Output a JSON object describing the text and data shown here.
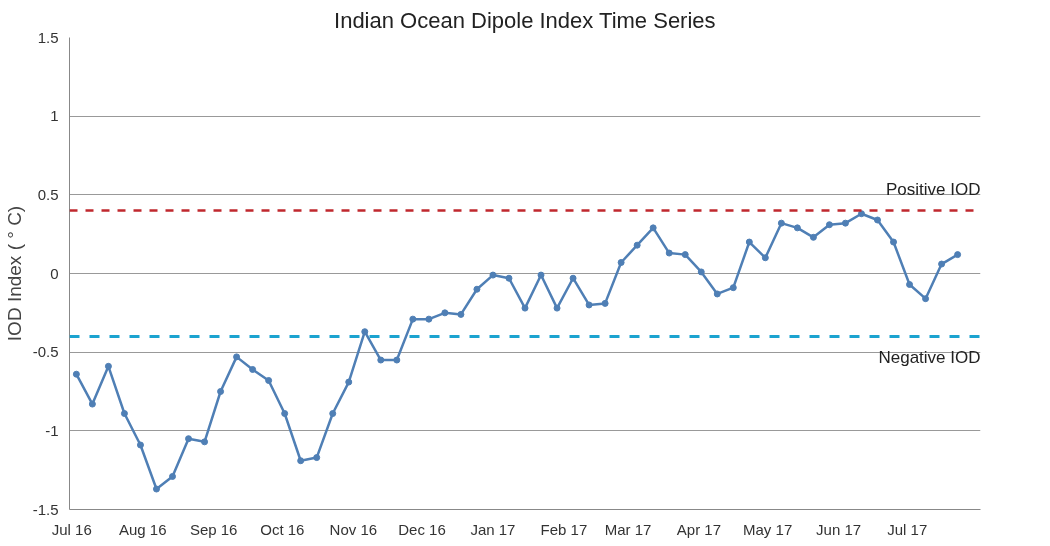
{
  "chart_data": {
    "type": "line",
    "title": "Indian Ocean Dipole Index Time Series",
    "ylabel": "IOD Index ( ° C)",
    "x": [
      "2016-07-03",
      "2016-07-10",
      "2016-07-17",
      "2016-07-24",
      "2016-07-31",
      "2016-08-07",
      "2016-08-14",
      "2016-08-21",
      "2016-08-28",
      "2016-09-04",
      "2016-09-11",
      "2016-09-18",
      "2016-09-25",
      "2016-10-02",
      "2016-10-09",
      "2016-10-16",
      "2016-10-23",
      "2016-10-30",
      "2016-11-06",
      "2016-11-13",
      "2016-11-20",
      "2016-11-27",
      "2016-12-04",
      "2016-12-11",
      "2016-12-18",
      "2016-12-25",
      "2017-01-01",
      "2017-01-08",
      "2017-01-15",
      "2017-01-22",
      "2017-01-29",
      "2017-02-05",
      "2017-02-12",
      "2017-02-19",
      "2017-02-26",
      "2017-03-05",
      "2017-03-12",
      "2017-03-19",
      "2017-03-26",
      "2017-04-02",
      "2017-04-09",
      "2017-04-16",
      "2017-04-23",
      "2017-04-30",
      "2017-05-07",
      "2017-05-14",
      "2017-05-21",
      "2017-05-28",
      "2017-06-04",
      "2017-06-11",
      "2017-06-18",
      "2017-06-25",
      "2017-07-02",
      "2017-07-09",
      "2017-07-16",
      "2017-07-23"
    ],
    "series": [
      {
        "color": "#4f7fb5",
        "values": [
          -0.64,
          -0.83,
          -0.59,
          -0.89,
          -1.09,
          -1.37,
          -1.29,
          -1.05,
          -1.07,
          -0.75,
          -0.53,
          -0.61,
          -0.68,
          -0.89,
          -1.19,
          -1.17,
          -0.89,
          -0.69,
          -0.37,
          -0.55,
          -0.55,
          -0.29,
          -0.29,
          -0.25,
          -0.26,
          -0.1,
          -0.01,
          -0.03,
          -0.22,
          -0.01,
          -0.22,
          -0.03,
          -0.2,
          -0.19,
          0.07,
          0.18,
          0.29,
          0.13,
          0.12,
          0.01,
          -0.13,
          -0.09,
          0.2,
          0.1,
          0.32,
          0.29,
          0.23,
          0.31,
          0.32,
          0.38,
          0.34,
          0.2,
          -0.07,
          -0.16,
          0.06,
          0.12
        ]
      }
    ],
    "xlim": [
      "2016-06-30",
      "2017-08-02"
    ],
    "xticks": [
      {
        "value": "2016-07-01",
        "label": "Jul 16"
      },
      {
        "value": "2016-08-01",
        "label": "Aug 16"
      },
      {
        "value": "2016-09-01",
        "label": "Sep 16"
      },
      {
        "value": "2016-10-01",
        "label": "Oct 16"
      },
      {
        "value": "2016-11-01",
        "label": "Nov 16"
      },
      {
        "value": "2016-12-01",
        "label": "Dec 16"
      },
      {
        "value": "2017-01-01",
        "label": "Jan 17"
      },
      {
        "value": "2017-02-01",
        "label": "Feb 17"
      },
      {
        "value": "2017-03-01",
        "label": "Mar 17"
      },
      {
        "value": "2017-04-01",
        "label": "Apr 17"
      },
      {
        "value": "2017-05-01",
        "label": "May 17"
      },
      {
        "value": "2017-06-01",
        "label": "Jun 17"
      },
      {
        "value": "2017-07-01",
        "label": "Jul 17"
      }
    ],
    "ylim": [
      -1.5,
      1.5
    ],
    "yticks": [
      -1.5,
      -1,
      -0.5,
      0,
      0.5,
      1,
      1.5
    ],
    "ref_lines": [
      {
        "axis": "y",
        "value": 0.4,
        "label": "Positive IOD",
        "color": "#c0282e",
        "line_style": "dashed"
      },
      {
        "axis": "y",
        "value": -0.4,
        "label": "Negative IOD",
        "color": "#1ba3d0",
        "line_style": "dashed"
      }
    ],
    "grid": "y",
    "marker": "circle",
    "line_style": "solid"
  }
}
